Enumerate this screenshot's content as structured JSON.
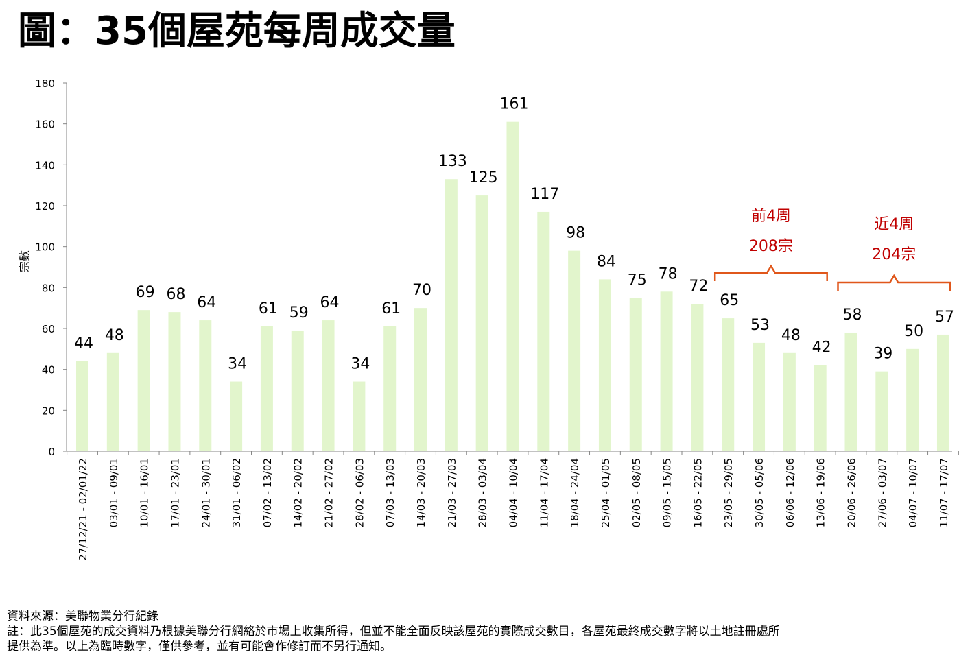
{
  "title": "圖：35個屋苑每周成交量",
  "chart_data": {
    "type": "bar",
    "title": "圖：35個屋苑每周成交量",
    "xlabel": "",
    "ylabel": "宗數",
    "ylim": [
      0,
      180
    ],
    "ytick_step": 20,
    "yticks": [
      "0",
      "20",
      "40",
      "60",
      "80",
      "100",
      "120",
      "140",
      "160",
      "180"
    ],
    "categories": [
      "27/12/21 - 02/01/22",
      "03/01 - 09/01",
      "10/01 - 16/01",
      "17/01 - 23/01",
      "24/01 - 30/01",
      "31/01 - 06/02",
      "07/02 - 13/02",
      "14/02 - 20/02",
      "21/02 - 27/02",
      "28/02 - 06/03",
      "07/03 - 13/03",
      "14/03 - 20/03",
      "21/03 - 27/03",
      "28/03 - 03/04",
      "04/04 - 10/04",
      "11/04 - 17/04",
      "18/04 - 24/04",
      "25/04 - 01/05",
      "02/05 - 08/05",
      "09/05 - 15/05",
      "16/05 - 22/05",
      "23/05 - 29/05",
      "30/05 - 05/06",
      "06/06 - 12/06",
      "13/06 - 19/06",
      "20/06 - 26/06",
      "27/06 - 03/07",
      "04/07 - 10/07",
      "11/07 - 17/07"
    ],
    "values": [
      44,
      48,
      69,
      68,
      64,
      34,
      61,
      59,
      64,
      34,
      61,
      70,
      133,
      125,
      161,
      117,
      98,
      84,
      75,
      78,
      72,
      65,
      53,
      48,
      42,
      58,
      39,
      50,
      57
    ],
    "bar_color": "#e2f5cc",
    "annotations": [
      {
        "from": 21,
        "to": 24,
        "lines": [
          "前4周",
          "208宗"
        ],
        "color": "#c00000"
      },
      {
        "from": 25,
        "to": 28,
        "lines": [
          "近4周",
          "204宗"
        ],
        "color": "#c00000"
      }
    ],
    "bracket_color": "#e0571b"
  },
  "footer": {
    "source": "資料來源：美聯物業分行紀錄",
    "note_line1": "註：此35個屋苑的成交資料乃根據美聯分行網絡於市場上收集所得，但並不能全面反映該屋苑的實際成交數目，各屋苑最終成交數字將以土地註冊處所",
    "note_line2": "提供為準。以上為臨時數字，僅供參考，並有可能會作修訂而不另行通知。"
  }
}
